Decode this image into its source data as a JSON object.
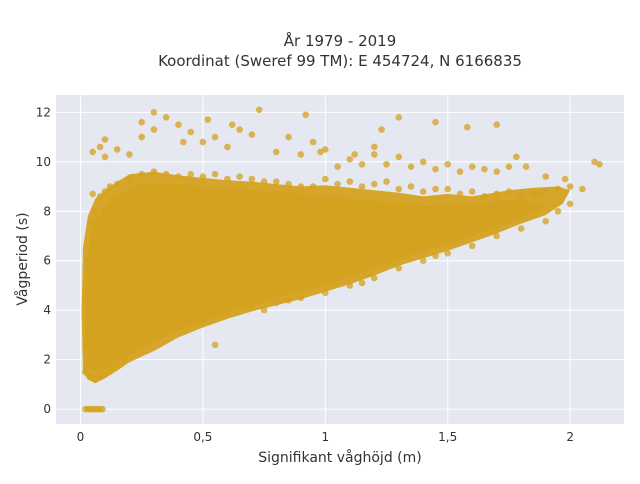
{
  "chart_data": {
    "type": "scatter",
    "title_line1": "År 1979 - 2019",
    "title_line2": "Koordinat (Sweref 99 TM): E 454724, N 6166835",
    "xlabel": "Signifikant våghöjd (m)",
    "ylabel": "Vågperiod (s)",
    "xlim": [
      -0.1,
      2.22
    ],
    "ylim": [
      -0.6,
      12.7
    ],
    "x_ticks": [
      {
        "value": 0,
        "label": "0"
      },
      {
        "value": 0.5,
        "label": "0,5"
      },
      {
        "value": 1,
        "label": "1"
      },
      {
        "value": 1.5,
        "label": "1,5"
      },
      {
        "value": 2,
        "label": "2"
      }
    ],
    "y_ticks": [
      {
        "value": 0,
        "label": "0"
      },
      {
        "value": 2,
        "label": "2"
      },
      {
        "value": 4,
        "label": "4"
      },
      {
        "value": 6,
        "label": "6"
      },
      {
        "value": 8,
        "label": "8"
      },
      {
        "value": 10,
        "label": "10"
      },
      {
        "value": 12,
        "label": "12"
      }
    ],
    "grid": true,
    "marker_color": "#d4a21e",
    "plot_background": "#e5e8f1",
    "series": [
      {
        "points": [
          [
            0.02,
            0
          ],
          [
            0.03,
            0
          ],
          [
            0.04,
            0
          ],
          [
            0.05,
            0
          ],
          [
            0.06,
            0
          ],
          [
            0.07,
            0
          ],
          [
            0.08,
            0
          ],
          [
            0.09,
            0
          ],
          [
            0.02,
            1.5
          ],
          [
            0.04,
            1.3
          ],
          [
            0.06,
            1.2
          ],
          [
            0.08,
            1.3
          ],
          [
            0.1,
            1.4
          ],
          [
            0.12,
            1.6
          ],
          [
            0.15,
            1.8
          ],
          [
            0.18,
            2.0
          ],
          [
            0.02,
            2.5
          ],
          [
            0.03,
            3.2
          ],
          [
            0.05,
            3.8
          ],
          [
            0.02,
            4.5
          ],
          [
            0.04,
            5.2
          ],
          [
            0.03,
            6.0
          ],
          [
            0.05,
            6.8
          ],
          [
            0.04,
            7.5
          ],
          [
            0.06,
            8.0
          ],
          [
            0.08,
            8.6
          ],
          [
            0.05,
            8.7
          ],
          [
            0.1,
            8.8
          ],
          [
            0.12,
            9.0
          ],
          [
            0.15,
            9.1
          ],
          [
            0.2,
            9.3
          ],
          [
            0.25,
            9.5
          ],
          [
            0.3,
            9.6
          ],
          [
            0.35,
            9.5
          ],
          [
            0.4,
            9.4
          ],
          [
            0.45,
            9.5
          ],
          [
            0.5,
            9.4
          ],
          [
            0.55,
            9.5
          ],
          [
            0.6,
            9.3
          ],
          [
            0.65,
            9.4
          ],
          [
            0.7,
            9.3
          ],
          [
            0.75,
            9.2
          ],
          [
            0.8,
            9.2
          ],
          [
            0.85,
            9.1
          ],
          [
            0.9,
            9.0
          ],
          [
            0.95,
            9.0
          ],
          [
            1.0,
            9.3
          ],
          [
            1.05,
            9.1
          ],
          [
            1.1,
            9.2
          ],
          [
            1.15,
            9.0
          ],
          [
            1.2,
            9.1
          ],
          [
            1.25,
            9.2
          ],
          [
            1.3,
            8.9
          ],
          [
            1.35,
            9.0
          ],
          [
            1.4,
            8.8
          ],
          [
            1.45,
            8.9
          ],
          [
            1.5,
            8.9
          ],
          [
            1.55,
            8.7
          ],
          [
            1.6,
            8.8
          ],
          [
            1.65,
            8.6
          ],
          [
            1.7,
            8.7
          ],
          [
            1.75,
            8.8
          ],
          [
            1.8,
            8.6
          ],
          [
            1.85,
            8.7
          ],
          [
            1.9,
            8.8
          ],
          [
            1.95,
            8.9
          ],
          [
            2.0,
            9.0
          ],
          [
            2.05,
            8.9
          ],
          [
            2.1,
            10.0
          ],
          [
            2.12,
            9.9
          ],
          [
            1.98,
            9.3
          ],
          [
            1.88,
            8.7
          ],
          [
            0.3,
            2.9
          ],
          [
            0.4,
            3.3
          ],
          [
            0.5,
            3.6
          ],
          [
            0.55,
            2.6
          ],
          [
            0.6,
            3.9
          ],
          [
            0.7,
            4.1
          ],
          [
            0.8,
            4.3
          ],
          [
            0.9,
            4.5
          ],
          [
            1.0,
            4.7
          ],
          [
            1.1,
            5.0
          ],
          [
            1.2,
            5.3
          ],
          [
            1.3,
            5.7
          ],
          [
            1.4,
            6.0
          ],
          [
            1.5,
            6.3
          ],
          [
            1.6,
            6.6
          ],
          [
            1.7,
            7.0
          ],
          [
            1.8,
            7.3
          ],
          [
            1.9,
            7.6
          ],
          [
            1.95,
            8.0
          ],
          [
            2.0,
            8.3
          ],
          [
            0.75,
            4.0
          ],
          [
            0.85,
            4.4
          ],
          [
            1.15,
            5.1
          ],
          [
            1.45,
            6.2
          ],
          [
            0.2,
            10.3
          ],
          [
            0.15,
            10.5
          ],
          [
            0.1,
            10.2
          ],
          [
            0.05,
            10.4
          ],
          [
            0.1,
            10.9
          ],
          [
            0.08,
            10.6
          ],
          [
            0.25,
            11.0
          ],
          [
            0.3,
            11.3
          ],
          [
            0.35,
            11.8
          ],
          [
            0.3,
            12.0
          ],
          [
            0.25,
            11.6
          ],
          [
            0.4,
            11.5
          ],
          [
            0.45,
            11.2
          ],
          [
            0.5,
            10.8
          ],
          [
            0.55,
            11.0
          ],
          [
            0.6,
            10.6
          ],
          [
            0.65,
            11.3
          ],
          [
            0.7,
            11.1
          ],
          [
            0.73,
            12.1
          ],
          [
            0.8,
            10.4
          ],
          [
            0.85,
            11.0
          ],
          [
            0.9,
            10.3
          ],
          [
            0.95,
            10.8
          ],
          [
            1.0,
            10.5
          ],
          [
            1.05,
            9.8
          ],
          [
            1.1,
            10.1
          ],
          [
            1.15,
            9.9
          ],
          [
            1.2,
            10.3
          ],
          [
            1.25,
            9.9
          ],
          [
            1.3,
            10.2
          ],
          [
            1.35,
            9.8
          ],
          [
            1.4,
            10.0
          ],
          [
            1.45,
            9.7
          ],
          [
            1.5,
            9.9
          ],
          [
            1.55,
            9.6
          ],
          [
            1.6,
            9.8
          ],
          [
            1.65,
            9.7
          ],
          [
            1.7,
            9.6
          ],
          [
            1.75,
            9.8
          ],
          [
            1.78,
            10.2
          ],
          [
            1.82,
            9.8
          ],
          [
            1.9,
            9.4
          ],
          [
            0.92,
            11.9
          ],
          [
            1.23,
            11.3
          ],
          [
            1.3,
            11.8
          ],
          [
            1.45,
            11.6
          ],
          [
            1.58,
            11.4
          ],
          [
            1.7,
            11.5
          ],
          [
            1.2,
            10.6
          ],
          [
            0.98,
            10.4
          ],
          [
            1.12,
            10.3
          ],
          [
            0.42,
            10.8
          ],
          [
            0.52,
            11.7
          ],
          [
            0.62,
            11.5
          ]
        ]
      }
    ]
  }
}
